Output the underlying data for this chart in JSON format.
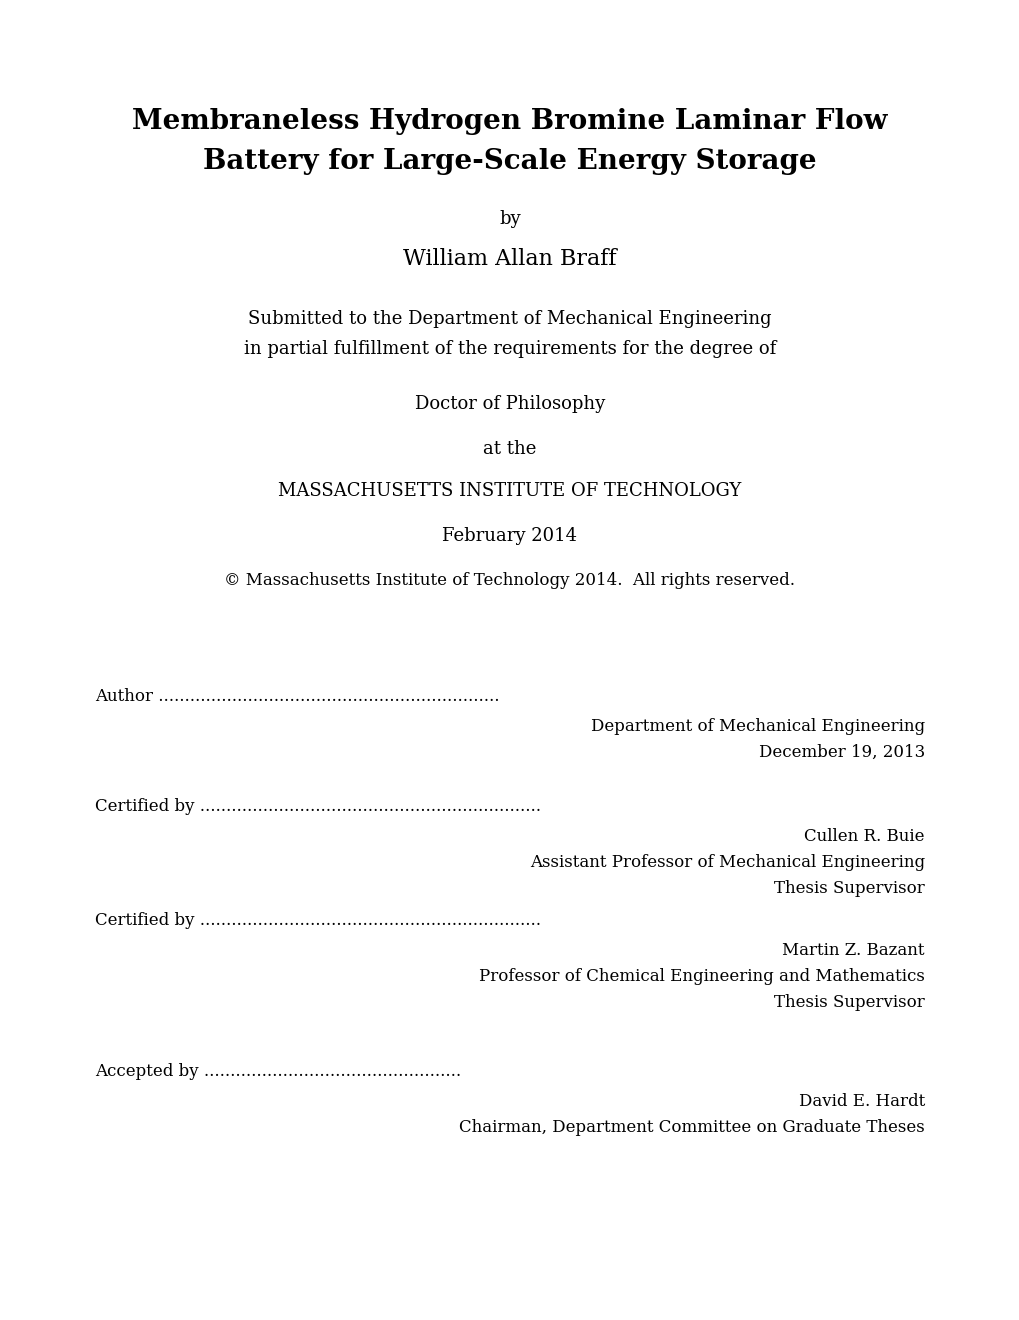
{
  "bg_color": "#ffffff",
  "title_line1": "Membraneless Hydrogen Bromine Laminar Flow",
  "title_line2": "Battery for Large-Scale Energy Storage",
  "by": "by",
  "author_name": "William Allan Braff",
  "submitted_line1": "Submitted to the Department of Mechanical Engineering",
  "submitted_line2": "in partial fulfillment of the requirements for the degree of",
  "degree": "Doctor of Philosophy",
  "at_the": "at the",
  "institute": "MASSACHUSETTS INSTITUTE OF TECHNOLOGY",
  "date": "February 2014",
  "copyright": "© Massachusetts Institute of Technology 2014.  All rights reserved.",
  "author_label": "Author",
  "author_dept": "Department of Mechanical Engineering",
  "author_date": "December 19, 2013",
  "certified1_label": "Certified by",
  "certified1_name": "Cullen R. Buie",
  "certified1_title1": "Assistant Professor of Mechanical Engineering",
  "certified1_title2": "Thesis Supervisor",
  "certified2_label": "Certified by",
  "certified2_name": "Martin Z. Bazant",
  "certified2_title1": "Professor of Chemical Engineering and Mathematics",
  "certified2_title2": "Thesis Supervisor",
  "accepted_label": "Accepted by",
  "accepted_name": "David E. Hardt",
  "accepted_title1": "Chairman, Department Committee on Graduate Theses",
  "dots_long": ".................................................................",
  "dots_medium": ".................................................",
  "fig_width": 10.2,
  "fig_height": 13.2,
  "dpi": 100
}
